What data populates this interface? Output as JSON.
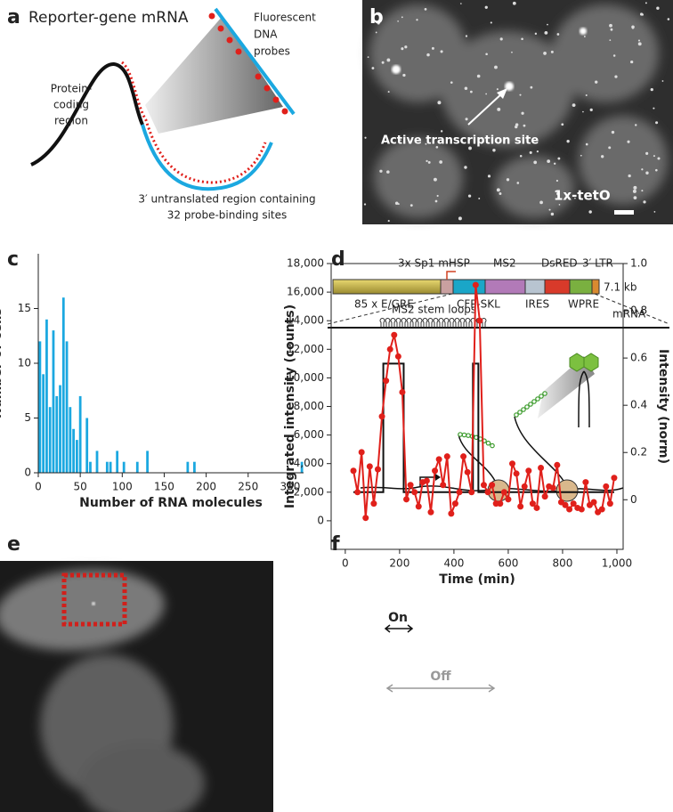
{
  "panels": {
    "a": {
      "label": "a",
      "title": "Reporter-gene mRNA",
      "probes": [
        "Fluorescent",
        "DNA",
        "probes"
      ],
      "coding": [
        "Protein-",
        "coding",
        "region"
      ],
      "utr": [
        "3′ untranslated region containing",
        "32 probe-binding sites"
      ]
    },
    "b": {
      "label": "b",
      "annotation": "Active transcription site",
      "scale": "1x-tetO"
    },
    "d": {
      "label": "d",
      "top": [
        "3x Sp1 mHSP",
        "MS2",
        "DsRED",
        "3′ LTR"
      ],
      "size": "7.1 kb",
      "bottom": [
        "85 x E/GRE",
        "CFP-SKL",
        "IRES",
        "WPRE"
      ],
      "loops": "MS2 stem loops",
      "mrna": "mRNA"
    },
    "e": {
      "label": "e"
    }
  },
  "chart_data": [
    {
      "type": "histogram",
      "panel": "c",
      "color": "#1ba8e0",
      "xlabel": "Number of RNA molecules",
      "ylabel": "Number of cells",
      "bins": [
        0,
        4,
        8,
        12,
        16,
        20,
        24,
        28,
        32,
        36,
        40,
        44,
        48,
        52,
        56,
        60,
        64,
        68,
        72,
        76,
        80,
        84,
        88,
        92,
        96,
        100,
        104,
        108,
        112,
        116,
        120,
        124,
        128,
        132,
        136,
        140,
        144,
        148,
        152,
        156,
        160,
        164,
        168,
        172,
        176,
        180,
        184,
        188,
        192,
        196,
        200,
        204,
        208,
        212,
        216,
        220,
        224,
        228,
        232,
        236,
        240,
        244,
        248,
        252,
        256,
        260,
        264,
        268,
        272,
        276,
        280,
        284,
        288,
        292,
        296,
        300,
        304,
        308,
        312,
        316
      ],
      "counts": [
        12,
        9,
        14,
        6,
        13,
        7,
        8,
        16,
        12,
        6,
        4,
        3,
        7,
        0,
        5,
        1,
        0,
        2,
        0,
        0,
        1,
        1,
        0,
        2,
        0,
        1,
        0,
        0,
        0,
        1,
        0,
        0,
        2,
        0,
        0,
        0,
        0,
        0,
        0,
        0,
        0,
        0,
        0,
        0,
        1,
        0,
        1,
        0,
        0,
        0,
        0,
        0,
        0,
        0,
        0,
        0,
        0,
        0,
        0,
        0,
        0,
        0,
        0,
        0,
        0,
        0,
        0,
        0,
        0,
        0,
        0,
        0,
        0,
        0,
        0,
        0,
        0,
        0,
        1
      ],
      "xlim": [
        0,
        316
      ],
      "xticks": [
        0,
        50,
        100,
        150,
        200,
        250,
        300
      ],
      "ylim": [
        0,
        20
      ],
      "yticks": [
        0,
        5,
        10,
        15
      ]
    },
    {
      "type": "line",
      "panel": "f",
      "xlabel": "Time (min)",
      "ylabel": "Integrated intensity (counts)",
      "y2label": "Intensity (norm)",
      "annotations": [
        "On",
        "Off"
      ],
      "xlim": [
        -52,
        1023
      ],
      "xticks": [
        0,
        200,
        400,
        600,
        800,
        {
          "value": 1000,
          "label": "1,000"
        }
      ],
      "ylim": [
        -2000,
        18000
      ],
      "yticks": [
        0,
        {
          "value": 2000,
          "label": "2,000"
        },
        {
          "value": 4000,
          "label": "4,000"
        },
        {
          "value": 6000,
          "label": "6,000"
        },
        {
          "value": 8000,
          "label": "8,000"
        },
        {
          "value": 10000,
          "label": "10,000"
        },
        {
          "value": 12000,
          "label": "12,000"
        },
        {
          "value": 14000,
          "label": "14,000"
        },
        {
          "value": 16000,
          "label": "16,000"
        },
        {
          "value": 18000,
          "label": "18,000"
        }
      ],
      "y2lim": [
        -0.21,
        1.0
      ],
      "y2ticks": [
        0,
        0.2,
        0.4,
        0.6,
        0.8,
        {
          "value": 1,
          "label": "1.0"
        }
      ],
      "series": [
        {
          "color": "#e0201b",
          "markers": true,
          "x": [
            30,
            45,
            60,
            75,
            90,
            105,
            120,
            135,
            150,
            165,
            180,
            195,
            210,
            225,
            240,
            255,
            270,
            285,
            300,
            315,
            330,
            345,
            360,
            375,
            390,
            405,
            420,
            435,
            450,
            465,
            480,
            495,
            510,
            525,
            540,
            555,
            570,
            585,
            600,
            615,
            630,
            645,
            660,
            675,
            690,
            705,
            720,
            735,
            750,
            765,
            780,
            795,
            810,
            825,
            840,
            855,
            870,
            885,
            900,
            915,
            930,
            945,
            960,
            975,
            990
          ],
          "values": [
            3500,
            2000,
            4800,
            200,
            3800,
            1200,
            3600,
            7300,
            9800,
            12000,
            13000,
            11500,
            9000,
            1500,
            2500,
            2000,
            1000,
            2700,
            2800,
            600,
            3500,
            4300,
            2500,
            4500,
            500,
            1200,
            2000,
            4500,
            3400,
            2000,
            16500,
            14000,
            2500,
            2000,
            2500,
            1200,
            1200,
            2000,
            1500,
            4000,
            3300,
            1000,
            2400,
            3500,
            1200,
            900,
            3700,
            1700,
            2400,
            2300,
            3900,
            1300,
            1100,
            800,
            1200,
            900,
            800,
            2700,
            1100,
            1300,
            600,
            800,
            2400,
            1200,
            3000
          ]
        },
        {
          "color": "#111111",
          "markers": false,
          "x": [
            30,
            140,
            140,
            215,
            215,
            470,
            470,
            490,
            490,
            990
          ],
          "values": [
            2000,
            2000,
            11000,
            11000,
            2000,
            2000,
            11000,
            11000,
            2000,
            2000
          ]
        }
      ]
    }
  ]
}
